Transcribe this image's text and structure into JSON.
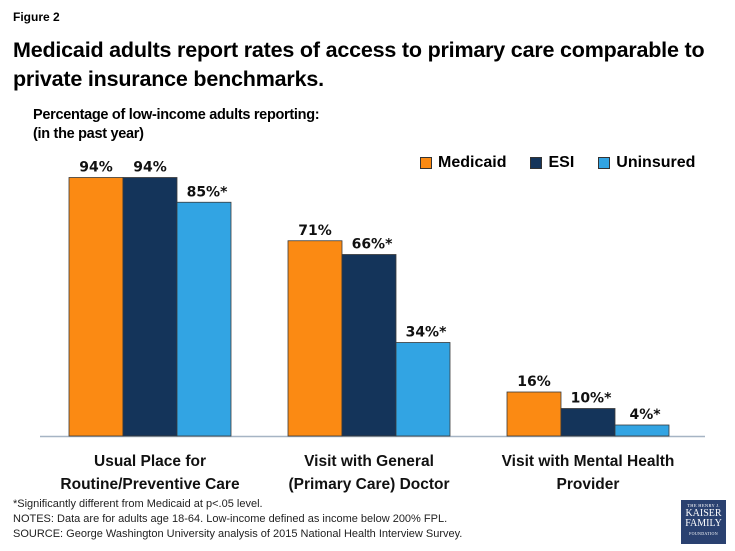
{
  "figure_label": "Figure 2",
  "title": "Medicaid adults report rates of access to primary care comparable to private insurance benchmarks.",
  "subtitle_line1": "Percentage of low-income adults reporting:",
  "subtitle_line2": "(in the past year)",
  "footnotes": [
    "*Significantly different from Medicaid at p<.05 level.",
    "NOTES: Data are for adults age 18-64. Low-income defined as income below 200% FPL.",
    "SOURCE: George Washington University analysis of 2015 National Health Interview Survey."
  ],
  "logo": {
    "line1": "THE HENRY J.",
    "line2": "KAISER",
    "line3": "FAMILY",
    "line4": "FOUNDATION"
  },
  "chart_data": {
    "type": "bar",
    "title": "Medicaid adults report rates of access to primary care comparable to private insurance benchmarks.",
    "xlabel": "",
    "ylabel": "Percentage of low-income adults reporting (in the past year)",
    "ylim": [
      0,
      100
    ],
    "grid": false,
    "legend_position": "top-right",
    "categories": [
      [
        "Usual Place for",
        "Routine/Preventive Care"
      ],
      [
        "Visit with General",
        "(Primary Care) Doctor"
      ],
      [
        "Visit with Mental Health",
        "Provider"
      ]
    ],
    "series": [
      {
        "name": "Medicaid",
        "color": "#fb8a13",
        "values": [
          94,
          71,
          16
        ],
        "labels": [
          "94%",
          "71%",
          "16%"
        ]
      },
      {
        "name": "ESI",
        "color": "#14345a",
        "values": [
          94,
          66,
          10
        ],
        "labels": [
          "94%",
          "66%*",
          "10%*"
        ]
      },
      {
        "name": "Uninsured",
        "color": "#32a4e3",
        "values": [
          85,
          34,
          4
        ],
        "labels": [
          "85%*",
          "34%*",
          "4%*"
        ]
      }
    ]
  }
}
